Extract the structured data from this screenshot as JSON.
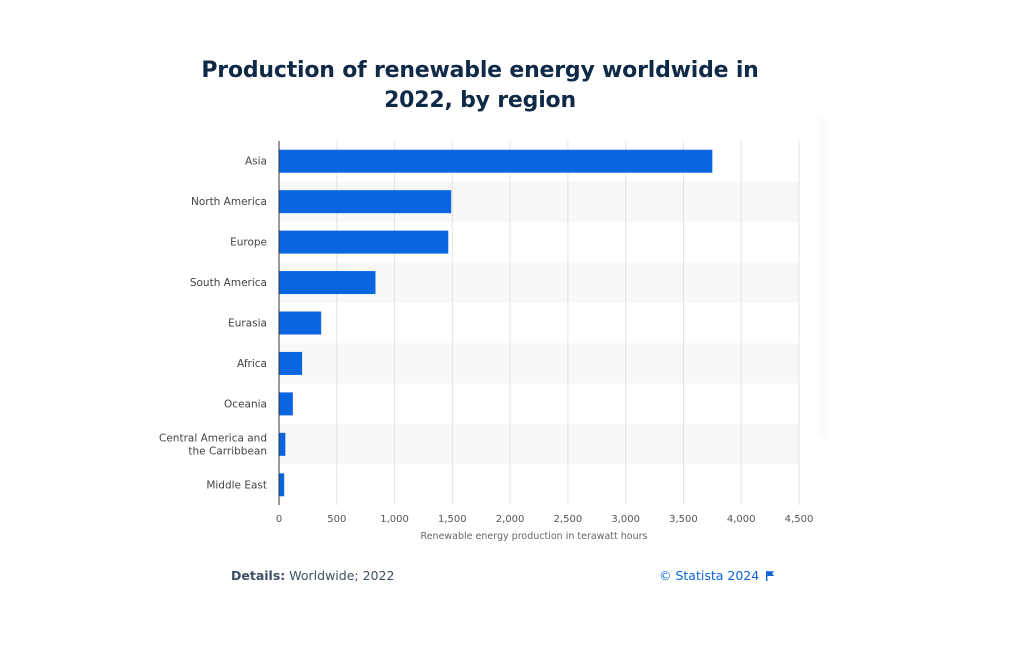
{
  "chart_data": {
    "type": "bar",
    "orientation": "horizontal",
    "title": "Production of renewable energy worldwide in 2022, by region",
    "categories": [
      "Asia",
      "North America",
      "Europe",
      "South America",
      "Eurasia",
      "Africa",
      "Oceania",
      "Central America and the Carribbean",
      "Middle East"
    ],
    "category_lines": [
      [
        "Asia"
      ],
      [
        "North America"
      ],
      [
        "Europe"
      ],
      [
        "South America"
      ],
      [
        "Eurasia"
      ],
      [
        "Africa"
      ],
      [
        "Oceania"
      ],
      [
        "Central America and",
        "the Carribbean"
      ],
      [
        "Middle East"
      ]
    ],
    "values": [
      3750,
      1490,
      1465,
      835,
      365,
      200,
      120,
      55,
      45
    ],
    "xlabel": "Renewable energy production in terawatt hours",
    "ylabel": "",
    "xlim": [
      0,
      4500
    ],
    "ticks": [
      0,
      500,
      1000,
      1500,
      2000,
      2500,
      3000,
      3500,
      4000,
      4500
    ],
    "tick_labels": [
      "0",
      "500",
      "1,000",
      "1,500",
      "2,000",
      "2,500",
      "3,000",
      "3,500",
      "4,000",
      "4,500"
    ],
    "grid": true,
    "bar_color": "#0966e0",
    "alt_row_color": "#f8f8f8",
    "grid_color": "#e3e3e3",
    "legend": "none"
  },
  "footer": {
    "details_label": "Details:",
    "details_value": "Worldwide; 2022",
    "source": "© Statista 2024",
    "source_icon": "flag-icon"
  }
}
